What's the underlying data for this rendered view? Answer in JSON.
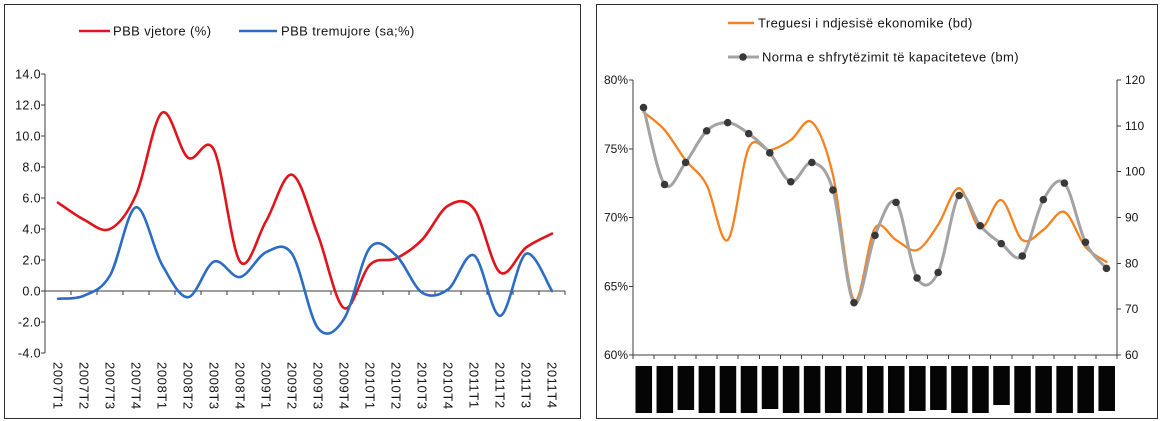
{
  "chart_data": [
    {
      "type": "line",
      "legend": "top",
      "grid": false,
      "categories": [
        "2007T1",
        "2007T2",
        "2007T3",
        "2007T4",
        "2008T1",
        "2008T2",
        "2008T3",
        "2008T4",
        "2009T1",
        "2009T2",
        "2009T3",
        "2009T4",
        "2010T1",
        "2010T2",
        "2010T3",
        "2010T4",
        "2011T1",
        "2011T2",
        "2011T3",
        "2011T4"
      ],
      "ylim": [
        -4,
        14
      ],
      "yticks": [
        "14.0",
        "12.0",
        "10.0",
        "8.0",
        "6.0",
        "4.0",
        "2.0",
        "0.0",
        "-2.0",
        "-4.0"
      ],
      "series": [
        {
          "name": "PBB vjetore (%)",
          "color": "#e1141c",
          "values": [
            5.7,
            4.6,
            4.0,
            6.2,
            11.5,
            8.6,
            9.1,
            1.9,
            4.5,
            7.5,
            3.6,
            -1.1,
            1.7,
            2.1,
            3.3,
            5.5,
            5.3,
            1.2,
            2.8,
            3.7
          ]
        },
        {
          "name": "PBB tremujore (sa;%)",
          "color": "#2b6cc4",
          "values": [
            -0.5,
            -0.3,
            1.0,
            5.4,
            1.7,
            -0.4,
            1.9,
            0.9,
            2.5,
            2.4,
            -2.4,
            -1.8,
            2.8,
            2.3,
            -0.1,
            0.1,
            2.3,
            -1.6,
            2.4,
            0.0
          ]
        }
      ]
    },
    {
      "type": "line",
      "legend": "top",
      "grid": false,
      "y_left": {
        "lim": [
          60,
          80
        ],
        "ticks": [
          "80%",
          "75%",
          "70%",
          "65%",
          "60%"
        ]
      },
      "y_right": {
        "lim": [
          60,
          120
        ],
        "ticks": [
          "120",
          "110",
          "100",
          "90",
          "80",
          "70",
          "60"
        ]
      },
      "series": [
        {
          "name": "Treguesi i ndjesisë ekonomike (bd)",
          "axis": "right",
          "color": "#f5821f",
          "marker": "none",
          "values": [
            113.0,
            109.1,
            102.5,
            97.1,
            85.1,
            105.2,
            104.7,
            106.9,
            110.8,
            99.3,
            72.0,
            87.7,
            85.1,
            82.9,
            88.4,
            96.4,
            87.7,
            93.8,
            85.1,
            87.3,
            91.2,
            83.6,
            80.3
          ]
        },
        {
          "name": "Norma e shfrytëzimit të kapaciteteve (bm)",
          "axis": "left",
          "color": "#a3a3a3",
          "marker": "circle",
          "marker_color": "#383838",
          "values": [
            78.0,
            72.4,
            74.0,
            76.3,
            76.9,
            76.1,
            74.7,
            72.6,
            74.0,
            72.0,
            63.8,
            68.7,
            71.1,
            65.6,
            66.0,
            71.6,
            69.4,
            68.1,
            67.2,
            71.3,
            72.5,
            68.2,
            66.3
          ]
        }
      ]
    }
  ]
}
